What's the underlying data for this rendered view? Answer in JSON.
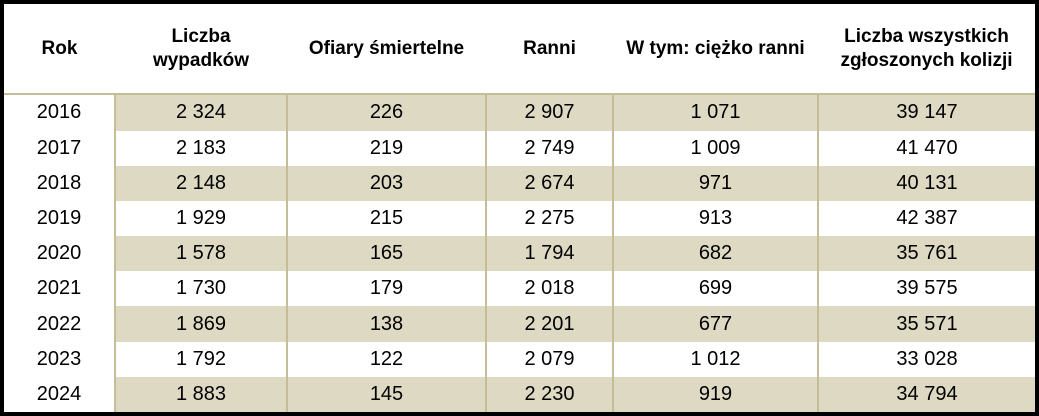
{
  "chart_data": {
    "type": "table",
    "columns": [
      "Rok",
      "Liczba wypadków",
      "Ofiary śmiertelne",
      "Ranni",
      "W tym: ciężko ranni",
      "Liczba wszystkich zgłoszonych kolizji"
    ],
    "rows": [
      [
        "2016",
        "2 324",
        "226",
        "2 907",
        "1 071",
        "39 147"
      ],
      [
        "2017",
        "2 183",
        "219",
        "2 749",
        "1 009",
        "41 470"
      ],
      [
        "2018",
        "2 148",
        "203",
        "2 674",
        "971",
        "40 131"
      ],
      [
        "2019",
        "1 929",
        "215",
        "2 275",
        "913",
        "42 387"
      ],
      [
        "2020",
        "1 578",
        "165",
        "1 794",
        "682",
        "35 761"
      ],
      [
        "2021",
        "1 730",
        "179",
        "2 018",
        "699",
        "39 575"
      ],
      [
        "2022",
        "1 869",
        "138",
        "2 201",
        "677",
        "35 571"
      ],
      [
        "2023",
        "1 792",
        "122",
        "2 079",
        "1 012",
        "33 028"
      ],
      [
        "2024",
        "1 883",
        "145",
        "2 230",
        "919",
        "34 794"
      ]
    ],
    "layout": {
      "striped_rows": "odd",
      "unstriped_first_column": true,
      "grid": "vertical-lines-in-body-only",
      "header_position": "top"
    },
    "colors": {
      "stripe_fill": "#DDD9C3",
      "grid_line": "#C4BD97",
      "outer_border": "#000000",
      "header_bg": "#FFFFFF",
      "text": "#000000"
    }
  }
}
